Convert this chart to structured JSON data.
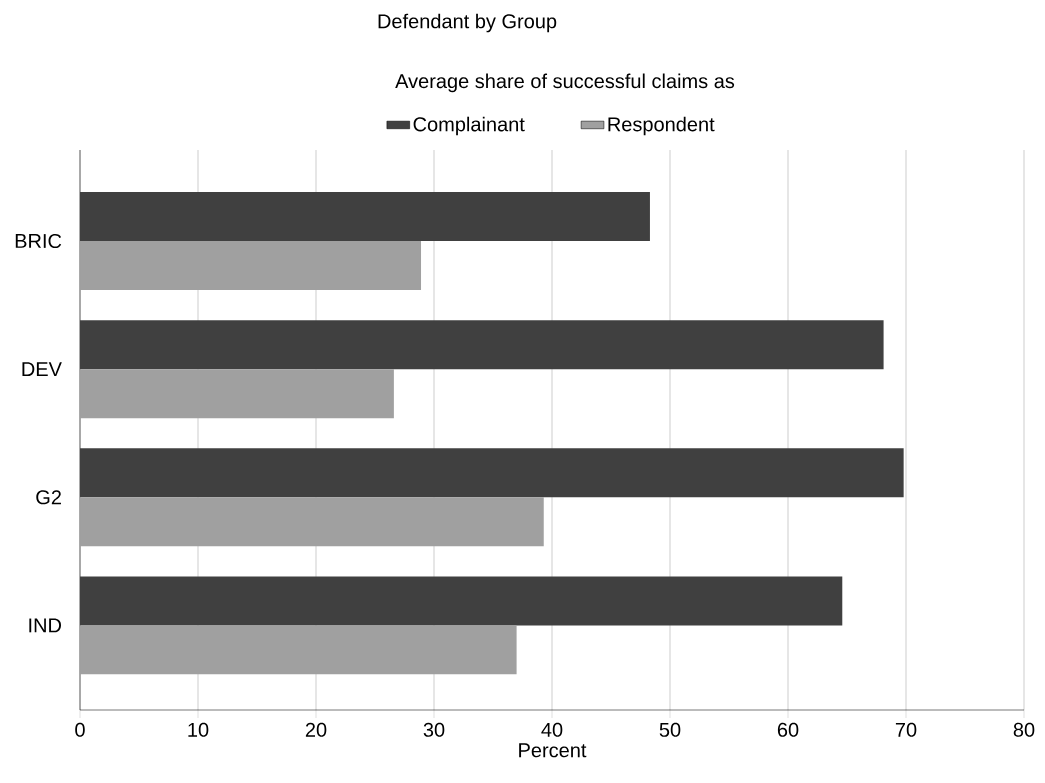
{
  "chart_data": {
    "type": "bar",
    "orientation": "horizontal",
    "title": "Defendant by Group",
    "legend_title": "Average share of successful claims as",
    "xlabel": "Percent",
    "categories": [
      "BRIC",
      "DEV",
      "G2",
      "IND"
    ],
    "series": [
      {
        "name": "Complainant",
        "color": "#404040",
        "values": [
          48.3,
          68.1,
          69.8,
          64.6
        ]
      },
      {
        "name": "Respondent",
        "color": "#a0a0a0",
        "values": [
          28.9,
          26.6,
          39.3,
          37.0
        ]
      }
    ],
    "xlim": [
      0,
      80
    ],
    "xticks": [
      0,
      10,
      20,
      30,
      40,
      50,
      60,
      70,
      80
    ],
    "grid": "x",
    "legend": "top"
  }
}
